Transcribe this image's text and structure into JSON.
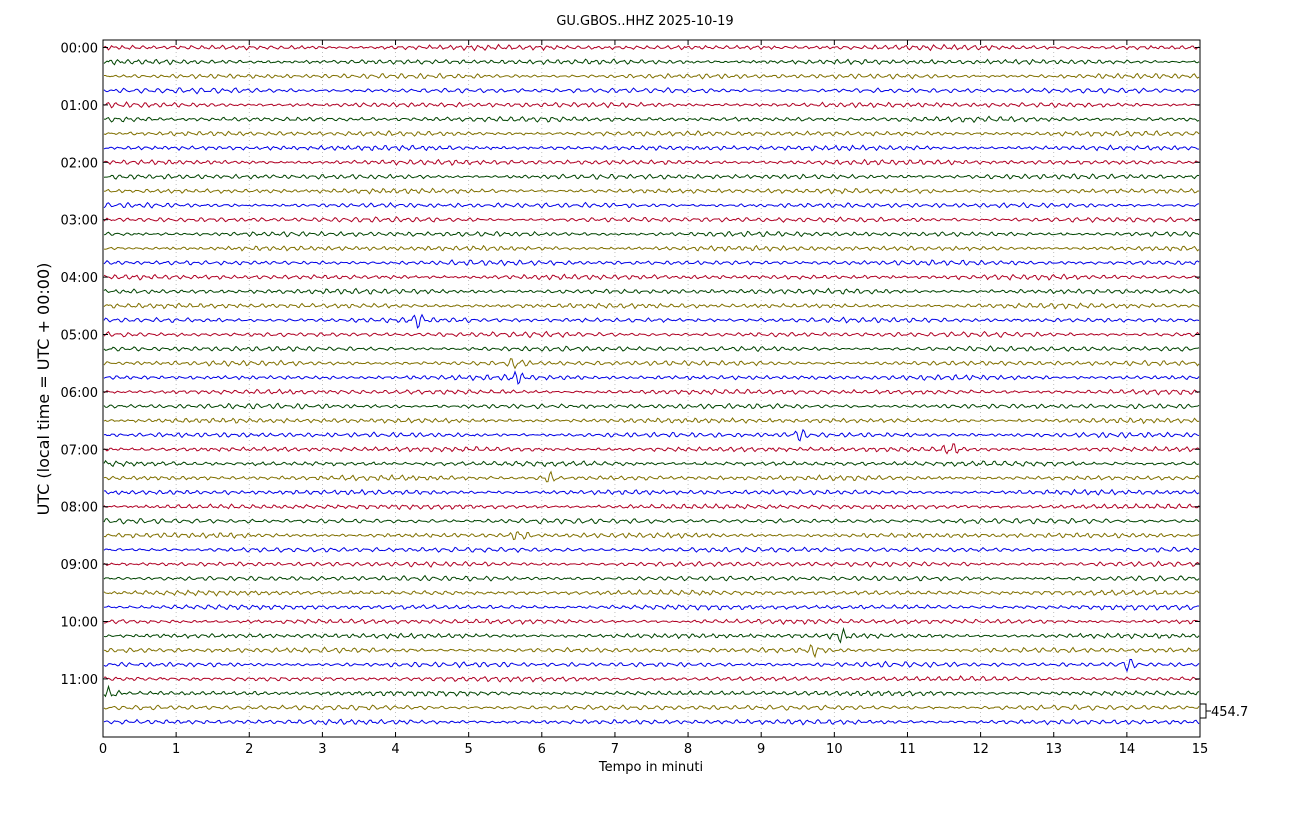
{
  "chart_data": {
    "type": "line",
    "title": "GU.GBOS..HHZ 2025-10-19",
    "xlabel": "Tempo in minuti",
    "ylabel": "UTC (local time = UTC + 00:00)",
    "xlim": [
      0,
      15
    ],
    "x_ticks": [
      "0",
      "1",
      "2",
      "3",
      "4",
      "5",
      "6",
      "7",
      "8",
      "9",
      "10",
      "11",
      "12",
      "13",
      "14",
      "15"
    ],
    "y_tick_labels": [
      "00:00",
      "01:00",
      "02:00",
      "03:00",
      "04:00",
      "05:00",
      "06:00",
      "07:00",
      "08:00",
      "09:00",
      "10:00",
      "11:00"
    ],
    "trace_count": 48,
    "trace_interval_minutes": 15,
    "trace_colors": [
      "#b00024",
      "#004400",
      "#807000",
      "#0000e6"
    ],
    "scale_label": "454.7",
    "grid": true,
    "notable_events": [
      {
        "trace": 19,
        "minute": 4.3
      },
      {
        "trace": 22,
        "minute": 5.65
      },
      {
        "trace": 23,
        "minute": 5.65
      },
      {
        "trace": 27,
        "minute": 9.5
      },
      {
        "trace": 28,
        "minute": 11.6
      },
      {
        "trace": 30,
        "minute": 6.1
      },
      {
        "trace": 34,
        "minute": 5.7
      },
      {
        "trace": 41,
        "minute": 10.1
      },
      {
        "trace": 42,
        "minute": 9.75
      },
      {
        "trace": 43,
        "minute": 14.0
      },
      {
        "trace": 45,
        "minute": 0.1
      }
    ]
  }
}
